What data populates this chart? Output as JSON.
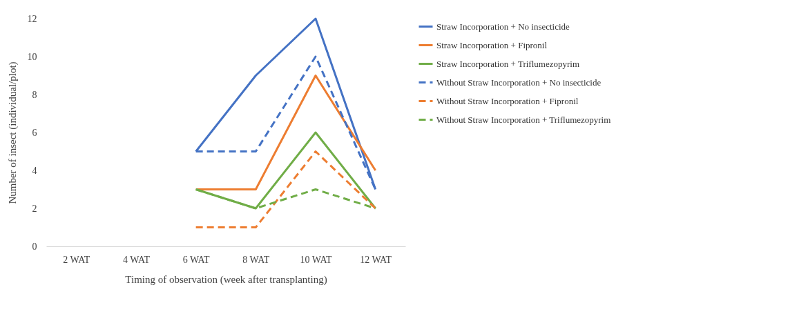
{
  "chart_data": {
    "type": "line",
    "xlabel": "Timing of observation (week after transplanting)",
    "ylabel": "Number of insect (individual/plot)",
    "categories": [
      "2 WAT",
      "4 WAT",
      "6 WAT",
      "8 WAT",
      "10 WAT",
      "12 WAT"
    ],
    "ylim": [
      0,
      12
    ],
    "yticks": [
      0,
      2,
      4,
      6,
      8,
      10,
      12
    ],
    "grid": false,
    "legend": "right",
    "marker": "none",
    "series": [
      {
        "name": "Straw Incorporation + No insecticide",
        "color": "#4472c4",
        "line_style": "solid",
        "values": [
          null,
          null,
          5,
          9,
          12,
          3
        ]
      },
      {
        "name": "Straw Incorporation  + Fipronil",
        "color": "#ed7d31",
        "line_style": "solid",
        "values": [
          null,
          null,
          3,
          3,
          9,
          4
        ]
      },
      {
        "name": "Straw Incorporation + Triflumezopyrim",
        "color": "#70ad47",
        "line_style": "solid",
        "values": [
          null,
          null,
          3,
          2,
          6,
          2
        ]
      },
      {
        "name": "Without Straw Incorporation + No insecticide",
        "color": "#4472c4",
        "line_style": "dashed",
        "values": [
          null,
          null,
          5,
          5,
          10,
          3
        ]
      },
      {
        "name": "Without Straw Incorporation  + Fipronil",
        "color": "#ed7d31",
        "line_style": "dashed",
        "values": [
          null,
          null,
          1,
          1,
          5,
          2
        ]
      },
      {
        "name": "Without Straw Incorporation + Triflumezopyrim",
        "color": "#70ad47",
        "line_style": "dashed",
        "values": [
          null,
          null,
          3,
          2,
          3,
          2
        ]
      }
    ]
  }
}
